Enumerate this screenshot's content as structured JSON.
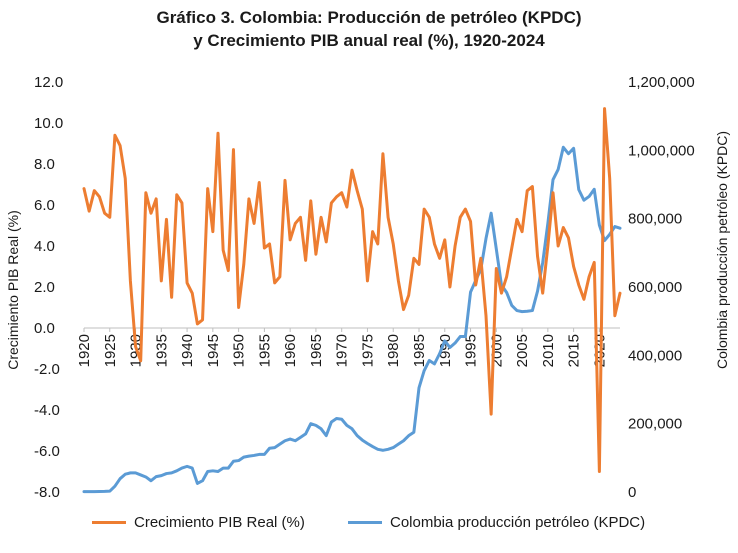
{
  "title": {
    "line1": "Gráfico 3. Colombia: Producción de petróleo (KPDC)",
    "line2": "y Crecimiento PIB anual real (%), 1920-2024"
  },
  "chart_data": {
    "type": "line",
    "title": "Gráfico 3. Colombia: Producción de petróleo (KPDC) y Crecimiento PIB anual real (%), 1920-2024",
    "x": [
      1920,
      1921,
      1922,
      1923,
      1924,
      1925,
      1926,
      1927,
      1928,
      1929,
      1930,
      1931,
      1932,
      1933,
      1934,
      1935,
      1936,
      1937,
      1938,
      1939,
      1940,
      1941,
      1942,
      1943,
      1944,
      1945,
      1946,
      1947,
      1948,
      1949,
      1950,
      1951,
      1952,
      1953,
      1954,
      1955,
      1956,
      1957,
      1958,
      1959,
      1960,
      1961,
      1962,
      1963,
      1964,
      1965,
      1966,
      1967,
      1968,
      1969,
      1970,
      1971,
      1972,
      1973,
      1974,
      1975,
      1976,
      1977,
      1978,
      1979,
      1980,
      1981,
      1982,
      1983,
      1984,
      1985,
      1986,
      1987,
      1988,
      1989,
      1990,
      1991,
      1992,
      1993,
      1994,
      1995,
      1996,
      1997,
      1998,
      1999,
      2000,
      2001,
      2002,
      2003,
      2004,
      2005,
      2006,
      2007,
      2008,
      2009,
      2010,
      2011,
      2012,
      2013,
      2014,
      2015,
      2016,
      2017,
      2018,
      2019,
      2020,
      2021,
      2022,
      2023,
      2024
    ],
    "x_tick_labels": [
      "1920",
      "1925",
      "1930",
      "1935",
      "1940",
      "1945",
      "1950",
      "1955",
      "1960",
      "1965",
      "1970",
      "1975",
      "1980",
      "1985",
      "1990",
      "1995",
      "2000",
      "2005",
      "2010",
      "2015",
      "2020"
    ],
    "ylabel_left": "Crecimiento PIB Real (%)",
    "ylabel_right": "Colombia producción petróleo (KPDC)",
    "ylim_left": [
      -8.0,
      12.0
    ],
    "yticks_left": [
      "12.0",
      "10.0",
      "8.0",
      "6.0",
      "4.0",
      "2.0",
      "0.0",
      "-2.0",
      "-4.0",
      "-6.0",
      "-8.0"
    ],
    "ylim_right": [
      0,
      1200000
    ],
    "yticks_right": [
      "1,200,000",
      "1,000,000",
      "800,000",
      "600,000",
      "400,000",
      "200,000",
      "0"
    ],
    "grid": false,
    "legend_position": "bottom",
    "series": [
      {
        "name": "Crecimiento PIB Real (%)",
        "color": "#ED7D31",
        "axis": "left",
        "values": [
          6.8,
          5.7,
          6.7,
          6.4,
          5.6,
          5.4,
          9.4,
          8.9,
          7.3,
          2.3,
          -0.9,
          -1.6,
          6.6,
          5.6,
          6.3,
          2.3,
          5.3,
          1.5,
          6.5,
          6.1,
          2.2,
          1.7,
          0.2,
          0.4,
          6.8,
          4.7,
          9.5,
          3.8,
          2.8,
          8.7,
          1.0,
          3.1,
          6.3,
          5.1,
          7.1,
          3.9,
          4.1,
          2.2,
          2.5,
          7.2,
          4.3,
          5.1,
          5.4,
          3.3,
          6.2,
          3.6,
          5.4,
          4.2,
          6.1,
          6.4,
          6.6,
          5.9,
          7.7,
          6.7,
          5.8,
          2.3,
          4.7,
          4.1,
          8.5,
          5.4,
          4.1,
          2.3,
          0.9,
          1.6,
          3.4,
          3.1,
          5.8,
          5.4,
          4.1,
          3.4,
          4.3,
          2.0,
          4.0,
          5.4,
          5.8,
          5.2,
          2.1,
          3.4,
          0.6,
          -4.2,
          2.9,
          1.7,
          2.5,
          3.9,
          5.3,
          4.7,
          6.7,
          6.9,
          3.5,
          1.7,
          4.0,
          6.6,
          4.0,
          4.9,
          4.4,
          3.0,
          2.1,
          1.4,
          2.5,
          3.2,
          -7.0,
          10.7,
          7.3,
          0.6,
          1.7
        ]
      },
      {
        "name": "Colombia producción petróleo (KPDC)",
        "color": "#5B9BD5",
        "axis": "right",
        "values": [
          1000,
          1200,
          1200,
          1500,
          1800,
          2500,
          17000,
          39000,
          52000,
          56000,
          56000,
          50000,
          44000,
          33000,
          45000,
          48000,
          54000,
          56000,
          62000,
          70000,
          75000,
          70000,
          25000,
          33000,
          60000,
          62000,
          60000,
          70000,
          70000,
          90000,
          92000,
          102000,
          105000,
          107000,
          110000,
          110000,
          128000,
          130000,
          140000,
          150000,
          155000,
          150000,
          160000,
          170000,
          200000,
          195000,
          185000,
          165000,
          205000,
          215000,
          213000,
          195000,
          185000,
          165000,
          152000,
          142000,
          133000,
          125000,
          122000,
          125000,
          130000,
          140000,
          150000,
          165000,
          175000,
          305000,
          355000,
          385000,
          375000,
          405000,
          442000,
          423000,
          436000,
          455000,
          455000,
          585000,
          619000,
          652000,
          742000,
          816000,
          711000,
          606000,
          584000,
          546000,
          531000,
          528000,
          529000,
          531000,
          588000,
          671000,
          786000,
          914000,
          944000,
          1009000,
          990000,
          1006000,
          885000,
          854000,
          865000,
          886000,
          781000,
          736000,
          754000,
          777000,
          772000
        ]
      }
    ]
  },
  "legend": {
    "items": [
      "Crecimiento PIB Real (%)",
      "Colombia producción petróleo (KPDC)"
    ]
  }
}
